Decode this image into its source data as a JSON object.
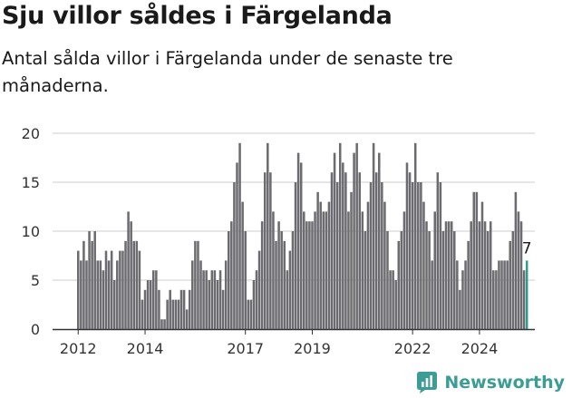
{
  "header": {
    "title": "Sju villor såldes i Färgelanda",
    "subtitle": "Antal sålda villor i Färgelanda under de senaste tre månaderna."
  },
  "brand": {
    "name": "Newsworthy",
    "icon": "newsworthy-logo-icon",
    "color": "#3c9d95"
  },
  "colors": {
    "bar": "#6b6b70",
    "highlight": "#2d9c8f",
    "grid": "#cccccc",
    "axis": "#333333"
  },
  "chart_data": {
    "type": "bar",
    "x_start": "2012-01",
    "frequency": "monthly",
    "values": [
      8,
      7,
      9,
      7,
      10,
      9,
      10,
      7,
      7,
      6,
      8,
      7,
      8,
      5,
      7,
      8,
      8,
      9,
      12,
      11,
      9,
      9,
      8,
      3,
      4,
      5,
      5,
      6,
      6,
      4,
      1,
      1,
      3,
      4,
      3,
      3,
      3,
      4,
      4,
      2,
      4,
      7,
      9,
      9,
      7,
      6,
      6,
      5,
      6,
      6,
      5,
      6,
      4,
      7,
      10,
      11,
      15,
      17,
      19,
      13,
      10,
      3,
      3,
      5,
      6,
      8,
      11,
      16,
      19,
      16,
      12,
      9,
      11,
      10,
      9,
      6,
      8,
      10,
      15,
      18,
      17,
      12,
      11,
      11,
      11,
      12,
      14,
      13,
      12,
      12,
      13,
      16,
      18,
      15,
      19,
      17,
      16,
      12,
      14,
      18,
      19,
      16,
      12,
      10,
      13,
      15,
      19,
      16,
      18,
      15,
      13,
      10,
      6,
      6,
      5,
      9,
      10,
      12,
      17,
      16,
      15,
      19,
      15,
      15,
      13,
      11,
      10,
      7,
      12,
      16,
      15,
      10,
      11,
      11,
      11,
      10,
      7,
      4,
      6,
      7,
      9,
      11,
      14,
      14,
      11,
      13,
      11,
      10,
      11,
      6,
      6,
      7,
      7,
      7,
      7,
      9,
      10,
      14,
      12,
      11,
      6,
      7
    ],
    "highlight_last": true,
    "highlight_label": "7",
    "ylim": [
      0,
      20
    ],
    "yticks": [
      0,
      5,
      10,
      15,
      20
    ],
    "xticks": [
      {
        "label": "2012",
        "index": 0
      },
      {
        "label": "2014",
        "index": 24
      },
      {
        "label": "2017",
        "index": 60
      },
      {
        "label": "2019",
        "index": 84
      },
      {
        "label": "2022",
        "index": 120
      },
      {
        "label": "2024",
        "index": 144
      }
    ],
    "grid": true,
    "legend": "none"
  }
}
